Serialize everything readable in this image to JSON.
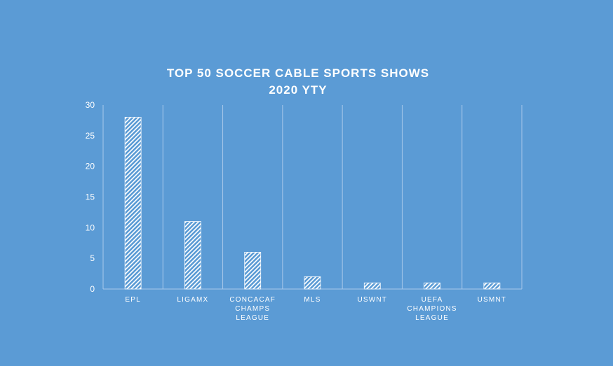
{
  "chart_data": {
    "type": "bar",
    "title": [
      "TOP 50 SOCCER CABLE SPORTS SHOWS",
      "2020 YTY"
    ],
    "xlabel": "",
    "ylabel": "",
    "categories": [
      [
        "EPL"
      ],
      [
        "LIGAMX"
      ],
      [
        "CONCACAF",
        "CHAMPS",
        "LEAGUE"
      ],
      [
        "MLS"
      ],
      [
        "USWNT"
      ],
      [
        "UEFA",
        "CHAMPIONS",
        "LEAGUE"
      ],
      [
        "USMNT"
      ]
    ],
    "values": [
      28,
      11,
      6,
      2,
      1,
      1,
      1
    ],
    "ylim": [
      0,
      30
    ],
    "yticks": [
      0,
      5,
      10,
      15,
      20,
      25,
      30
    ],
    "grid": "vertical category separators",
    "legend": "none",
    "bar_fill": "white diagonal hatch",
    "colors": {
      "background": "#5b9bd5",
      "text": "#ffffff",
      "bar": "#ffffff",
      "grid": "#a9c9ea"
    }
  }
}
